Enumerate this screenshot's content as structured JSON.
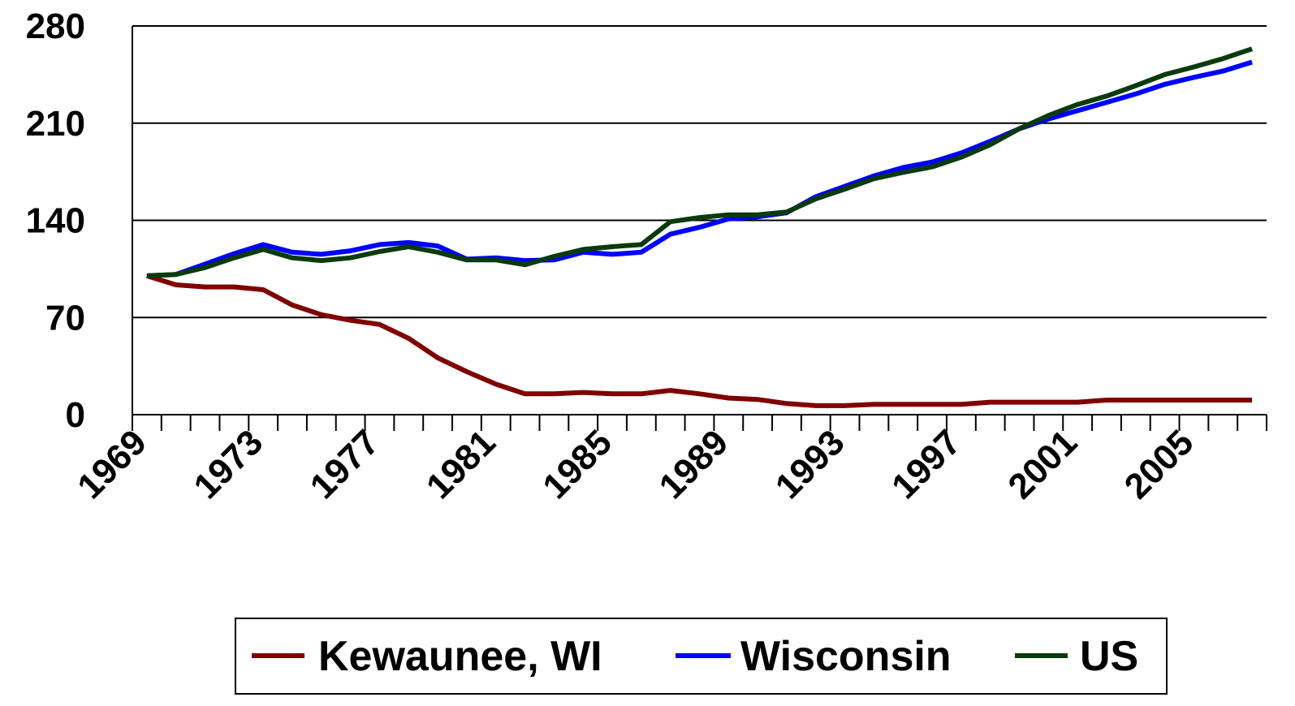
{
  "chart_data": {
    "type": "line",
    "categories": [
      "1969",
      null,
      null,
      null,
      "1973",
      null,
      null,
      null,
      "1977",
      null,
      null,
      null,
      "1981",
      null,
      null,
      null,
      "1985",
      null,
      null,
      null,
      "1989",
      null,
      null,
      null,
      "1993",
      null,
      null,
      null,
      "1997",
      null,
      null,
      null,
      "2001",
      null,
      null,
      null,
      "2005",
      null,
      null
    ],
    "series": [
      {
        "name": "Kewaunee, WI",
        "color": "#800000",
        "values": [
          100,
          93.5,
          92,
          92,
          90,
          79,
          72,
          68,
          65,
          55,
          41,
          31,
          22,
          15,
          15,
          16,
          15,
          15,
          17.5,
          15,
          12,
          11,
          8,
          6.5,
          6.5,
          7.5,
          7.5,
          7.5,
          7.5,
          9,
          9,
          9,
          9,
          10.5,
          10.5,
          10.5,
          10.5,
          10.5,
          10.5
        ]
      },
      {
        "name": "Wisconsin",
        "color": "#0000ff",
        "values": [
          100,
          101,
          108.5,
          116,
          122.5,
          117,
          115.5,
          118,
          122.5,
          124,
          121.5,
          112,
          113,
          111,
          111.5,
          117,
          115.5,
          117,
          130,
          135,
          141,
          142.5,
          145.5,
          157,
          164.5,
          172,
          178,
          182,
          188.5,
          197,
          206,
          213,
          219,
          225,
          231,
          238,
          243,
          247.5,
          254
        ]
      },
      {
        "name": "US",
        "color": "#0b3b0b",
        "values": [
          100,
          101,
          106,
          113,
          119,
          113,
          111,
          113,
          117.5,
          121,
          117,
          111.5,
          111.5,
          108,
          114,
          119,
          121,
          122.5,
          139,
          142,
          144,
          144,
          146,
          155.5,
          162.5,
          170,
          174.5,
          178.5,
          185.5,
          194.5,
          206,
          215.5,
          223.5,
          229.5,
          237,
          245,
          250.5,
          256.5,
          263.5
        ]
      }
    ],
    "ylim": [
      0,
      280
    ],
    "yticks": [
      0,
      70,
      140,
      210,
      280
    ],
    "grid": true
  }
}
